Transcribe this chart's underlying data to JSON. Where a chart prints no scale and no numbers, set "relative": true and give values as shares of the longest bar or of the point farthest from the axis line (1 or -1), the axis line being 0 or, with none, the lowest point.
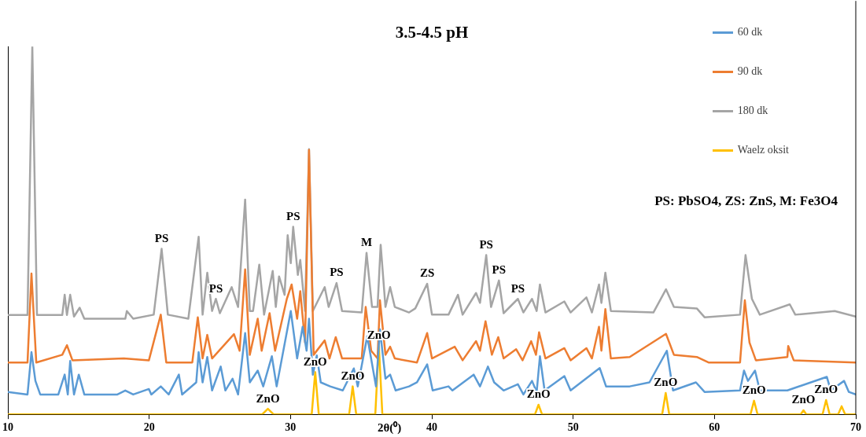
{
  "chart_data": {
    "type": "line",
    "title": "3.5-4.5 pH",
    "xlabel": "2θ(⁰)",
    "relative": true,
    "xlim": [
      10,
      70
    ],
    "xticks": [
      10,
      20,
      30,
      40,
      50,
      60,
      70
    ],
    "legend": "top right",
    "marker": "none",
    "line_style": "solid",
    "series": [
      {
        "name": "60 dk",
        "color": "#5b9bd5",
        "x": [
          10,
          11.39,
          11.67,
          11.95,
          12.29,
          13.57,
          14.02,
          14.24,
          14.41,
          14.68,
          15.02,
          15.41,
          17.75,
          18.31,
          18.87,
          19.98,
          20.15,
          20.82,
          21.38,
          22.1,
          22.33,
          23.33,
          23.5,
          23.78,
          24.11,
          24.45,
          25.06,
          25.39,
          25.9,
          26.29,
          26.79,
          27.12,
          27.68,
          28.07,
          28.68,
          29.02,
          30.02,
          30.47,
          30.86,
          31.14,
          31.31,
          31.58,
          31.86,
          32.14,
          32.81,
          33.7,
          34.48,
          34.76,
          35.43,
          36.05,
          36.33,
          36.72,
          37.05,
          37.44,
          38.39,
          38.95,
          39.67,
          40.06,
          41.18,
          41.46,
          42.96,
          43.41,
          43.97,
          44.41,
          45.08,
          46.09,
          46.48,
          47.09,
          47.42,
          47.65,
          47.98,
          49.38,
          49.82,
          51.88,
          52.33,
          54.0,
          55.4,
          56.63,
          57.07,
          58.69,
          59.3,
          61.81,
          62.09,
          62.37,
          62.87,
          63.21,
          65.16,
          67.95,
          68.23,
          69.17,
          69.51,
          70
        ],
        "values": [
          0.061,
          0.054,
          0.169,
          0.091,
          0.054,
          0.054,
          0.108,
          0.054,
          0.145,
          0.054,
          0.108,
          0.054,
          0.054,
          0.065,
          0.054,
          0.069,
          0.054,
          0.076,
          0.054,
          0.108,
          0.054,
          0.087,
          0.169,
          0.087,
          0.156,
          0.065,
          0.13,
          0.065,
          0.097,
          0.054,
          0.221,
          0.087,
          0.119,
          0.076,
          0.158,
          0.076,
          0.281,
          0.152,
          0.238,
          0.173,
          0.26,
          0.108,
          0.16,
          0.087,
          0.076,
          0.065,
          0.125,
          0.076,
          0.212,
          0.076,
          0.231,
          0.097,
          0.108,
          0.065,
          0.076,
          0.087,
          0.136,
          0.065,
          0.076,
          0.065,
          0.108,
          0.076,
          0.13,
          0.087,
          0.065,
          0.082,
          0.054,
          0.091,
          0.061,
          0.158,
          0.065,
          0.104,
          0.065,
          0.126,
          0.076,
          0.076,
          0.087,
          0.173,
          0.065,
          0.087,
          0.061,
          0.065,
          0.119,
          0.091,
          0.119,
          0.065,
          0.065,
          0.102,
          0.065,
          0.091,
          0.061,
          0.054
        ]
      },
      {
        "name": "90 dk",
        "color": "#ed7d31",
        "x": [
          10,
          11.39,
          11.67,
          12.01,
          13.85,
          14.18,
          14.57,
          18.2,
          19.98,
          20.82,
          21.21,
          23.05,
          23.44,
          23.78,
          24.11,
          24.45,
          26.0,
          26.4,
          26.79,
          27.12,
          27.68,
          27.96,
          28.52,
          28.91,
          29.74,
          30.08,
          30.47,
          30.69,
          31.03,
          31.31,
          31.64,
          32.42,
          32.76,
          33.2,
          33.65,
          35.04,
          35.32,
          35.71,
          36.16,
          36.33,
          36.72,
          37.05,
          37.38,
          38.95,
          39.67,
          40.01,
          41.62,
          42.18,
          43.13,
          43.41,
          43.8,
          44.25,
          44.7,
          45.08,
          45.97,
          46.42,
          47.03,
          47.37,
          47.59,
          48.04,
          49.38,
          49.82,
          50.94,
          51.33,
          51.83,
          52.0,
          52.28,
          52.67,
          54.0,
          56.57,
          57.13,
          58.75,
          59.58,
          61.81,
          62.15,
          62.48,
          62.93,
          65.16,
          65.22,
          65.61,
          70
        ],
        "values": [
          0.141,
          0.141,
          0.383,
          0.141,
          0.162,
          0.188,
          0.147,
          0.152,
          0.147,
          0.271,
          0.141,
          0.141,
          0.264,
          0.152,
          0.216,
          0.152,
          0.218,
          0.173,
          0.394,
          0.162,
          0.26,
          0.173,
          0.275,
          0.173,
          0.314,
          0.353,
          0.26,
          0.335,
          0.195,
          0.719,
          0.162,
          0.201,
          0.152,
          0.21,
          0.152,
          0.152,
          0.292,
          0.173,
          0.152,
          0.31,
          0.162,
          0.184,
          0.152,
          0.141,
          0.221,
          0.152,
          0.184,
          0.147,
          0.199,
          0.173,
          0.253,
          0.162,
          0.21,
          0.152,
          0.177,
          0.147,
          0.199,
          0.162,
          0.223,
          0.152,
          0.18,
          0.147,
          0.18,
          0.152,
          0.238,
          0.173,
          0.286,
          0.152,
          0.156,
          0.219,
          0.162,
          0.156,
          0.141,
          0.141,
          0.31,
          0.195,
          0.147,
          0.156,
          0.186,
          0.147,
          0.141
        ]
      },
      {
        "name": "180 dk",
        "color": "#a5a5a5",
        "x": [
          10,
          11.39,
          11.73,
          12.06,
          13.85,
          14.02,
          14.18,
          14.41,
          14.68,
          15.08,
          15.41,
          18.31,
          18.42,
          18.87,
          20.32,
          20.88,
          21.32,
          22.77,
          23.5,
          23.78,
          24.11,
          24.45,
          24.72,
          25.0,
          25.84,
          26.29,
          26.79,
          27.12,
          27.35,
          27.79,
          28.13,
          28.74,
          28.96,
          29.19,
          29.58,
          29.8,
          30.02,
          30.19,
          30.52,
          30.69,
          31.03,
          31.31,
          31.58,
          32.42,
          32.7,
          33.26,
          33.65,
          35.04,
          35.38,
          35.77,
          36.16,
          36.38,
          36.72,
          37.05,
          37.38,
          38.39,
          38.83,
          39.67,
          40.01,
          41.18,
          41.85,
          42.18,
          43.13,
          43.41,
          43.85,
          44.19,
          44.75,
          45.08,
          46.09,
          46.48,
          47.09,
          47.42,
          47.65,
          48.04,
          49.38,
          49.82,
          50.94,
          51.33,
          51.83,
          52.0,
          52.28,
          52.67,
          55.68,
          56.57,
          57.13,
          58.75,
          59.3,
          61.81,
          62.2,
          62.65,
          63.21,
          65.33,
          65.72,
          68.51,
          70
        ],
        "values": [
          0.27,
          0.27,
          1,
          0.27,
          0.27,
          0.325,
          0.27,
          0.325,
          0.266,
          0.29,
          0.26,
          0.26,
          0.281,
          0.26,
          0.271,
          0.45,
          0.271,
          0.26,
          0.483,
          0.271,
          0.385,
          0.281,
          0.314,
          0.275,
          0.346,
          0.292,
          0.584,
          0.281,
          0.281,
          0.407,
          0.271,
          0.39,
          0.292,
          0.375,
          0.325,
          0.487,
          0.411,
          0.51,
          0.379,
          0.42,
          0.281,
          0.721,
          0.281,
          0.346,
          0.292,
          0.357,
          0.281,
          0.277,
          0.439,
          0.292,
          0.292,
          0.461,
          0.292,
          0.346,
          0.292,
          0.277,
          0.288,
          0.355,
          0.271,
          0.271,
          0.325,
          0.271,
          0.33,
          0.303,
          0.433,
          0.292,
          0.364,
          0.275,
          0.314,
          0.277,
          0.314,
          0.281,
          0.353,
          0.277,
          0.307,
          0.277,
          0.318,
          0.277,
          0.353,
          0.303,
          0.385,
          0.281,
          0.277,
          0.34,
          0.292,
          0.288,
          0.264,
          0.271,
          0.433,
          0.314,
          0.271,
          0.299,
          0.271,
          0.281,
          0.266
        ]
      },
      {
        "name": "Waelz oksit",
        "color": "#ffc000",
        "x": [
          10,
          28.0,
          28.4,
          28.8,
          31.5,
          31.75,
          32.0,
          34.15,
          34.4,
          34.65,
          36.0,
          36.25,
          36.5,
          47.3,
          47.55,
          47.8,
          56.3,
          56.55,
          56.8,
          62.55,
          62.8,
          63.05,
          66.1,
          66.3,
          66.5,
          67.65,
          67.9,
          68.15,
          68.75,
          69.0,
          69.25,
          70
        ],
        "values": [
          0,
          0,
          0.015,
          0,
          0,
          0.115,
          0,
          0,
          0.076,
          0,
          0,
          0.188,
          0,
          0,
          0.026,
          0,
          0,
          0.058,
          0,
          0,
          0.037,
          0,
          0,
          0.011,
          0,
          0,
          0.039,
          0,
          0,
          0.022,
          0,
          0
        ]
      }
    ],
    "annotations": [
      "PS: PbSO4, ZS: ZnS, M: Fe3O4",
      {
        "text": "PS",
        "x": 20.88,
        "y": 0.45
      },
      {
        "text": "PS",
        "x": 24.72,
        "y": 0.314
      },
      {
        "text": "PS",
        "x": 30.19,
        "y": 0.51
      },
      {
        "text": "PS",
        "x": 33.26,
        "y": 0.357
      },
      {
        "text": "M",
        "x": 35.38,
        "y": 0.439
      },
      {
        "text": "ZS",
        "x": 39.67,
        "y": 0.355
      },
      {
        "text": "PS",
        "x": 43.85,
        "y": 0.433
      },
      {
        "text": "PS",
        "x": 44.75,
        "y": 0.364
      },
      {
        "text": "PS",
        "x": 46.09,
        "y": 0.314
      },
      {
        "text": "ZnO",
        "x": 28.4,
        "y": 0.015
      },
      {
        "text": "ZnO",
        "x": 31.75,
        "y": 0.115
      },
      {
        "text": "ZnO",
        "x": 34.4,
        "y": 0.076
      },
      {
        "text": "ZnO",
        "x": 36.25,
        "y": 0.188
      },
      {
        "text": "ZnO",
        "x": 47.55,
        "y": 0.026
      },
      {
        "text": "ZnO",
        "x": 56.55,
        "y": 0.058
      },
      {
        "text": "ZnO",
        "x": 62.8,
        "y": 0.037
      },
      {
        "text": "ZnO",
        "x": 66.3,
        "y": 0.011
      },
      {
        "text": "ZnO",
        "x": 67.9,
        "y": 0.039
      }
    ]
  }
}
